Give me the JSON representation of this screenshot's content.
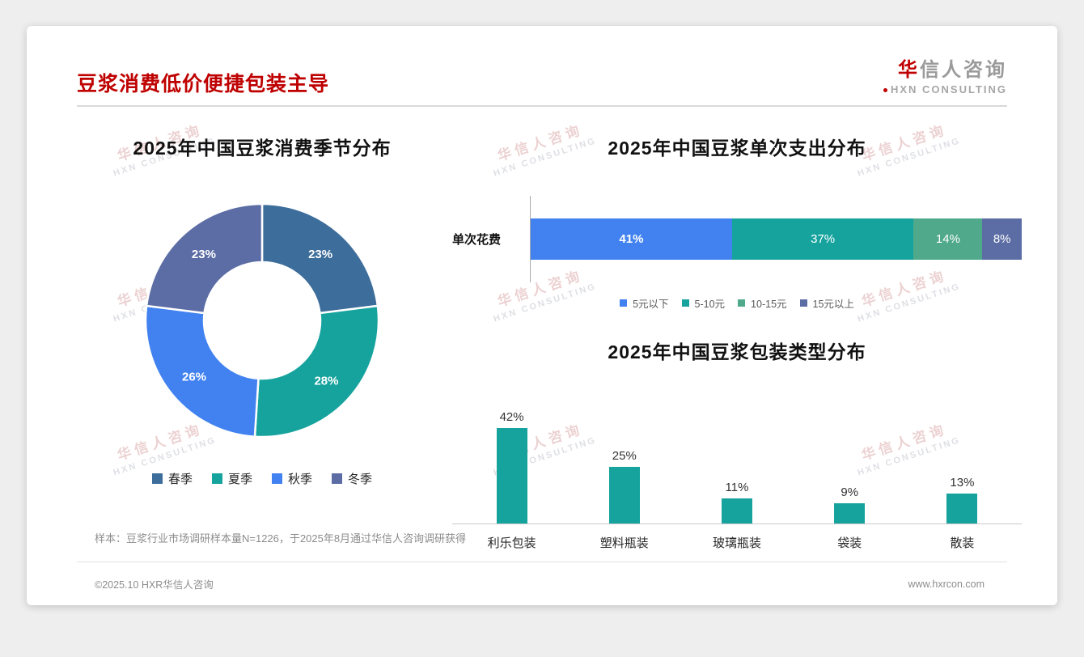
{
  "header": {
    "title": "豆浆消费低价便捷包装主导"
  },
  "logo": {
    "cn_first": "华",
    "cn_rest": "信人咨询",
    "en": "HXN CONSULTING"
  },
  "watermark": {
    "line1": "华信人咨询",
    "line2": "HXN CONSULTING"
  },
  "chart_data": [
    {
      "type": "pie",
      "subtype": "donut",
      "title": "2025年中国豆浆消费季节分布",
      "categories": [
        "春季",
        "夏季",
        "秋季",
        "冬季"
      ],
      "values": [
        23,
        28,
        26,
        23
      ],
      "labels": [
        "23%",
        "28%",
        "26%",
        "23%"
      ],
      "colors": [
        "#3d6d9b",
        "#16a39e",
        "#4182f0",
        "#5c6da5"
      ],
      "legend_position": "bottom"
    },
    {
      "type": "bar",
      "subtype": "stacked-horizontal",
      "title": "2025年中国豆浆单次支出分布",
      "row_label": "单次花费",
      "categories": [
        "5元以下",
        "5-10元",
        "10-15元",
        "15元以上"
      ],
      "values": [
        41,
        37,
        14,
        8
      ],
      "labels": [
        "41%",
        "37%",
        "14%",
        "8%"
      ],
      "colors": [
        "#4182f0",
        "#16a39e",
        "#4fa98a",
        "#5c6da5"
      ],
      "legend_position": "bottom"
    },
    {
      "type": "bar",
      "subtype": "column",
      "title": "2025年中国豆浆包装类型分布",
      "categories": [
        "利乐包装",
        "塑料瓶装",
        "玻璃瓶装",
        "袋装",
        "散装"
      ],
      "values": [
        42,
        25,
        11,
        9,
        13
      ],
      "labels": [
        "42%",
        "25%",
        "11%",
        "9%",
        "13%"
      ],
      "color": "#16a39e",
      "ylim": [
        0,
        45
      ]
    }
  ],
  "footnote": "样本：豆浆行业市场调研样本量N=1226，于2025年8月通过华信人咨询调研获得",
  "footer": {
    "left": "©2025.10 HXR华信人咨询",
    "right": "www.hxrcon.com"
  }
}
